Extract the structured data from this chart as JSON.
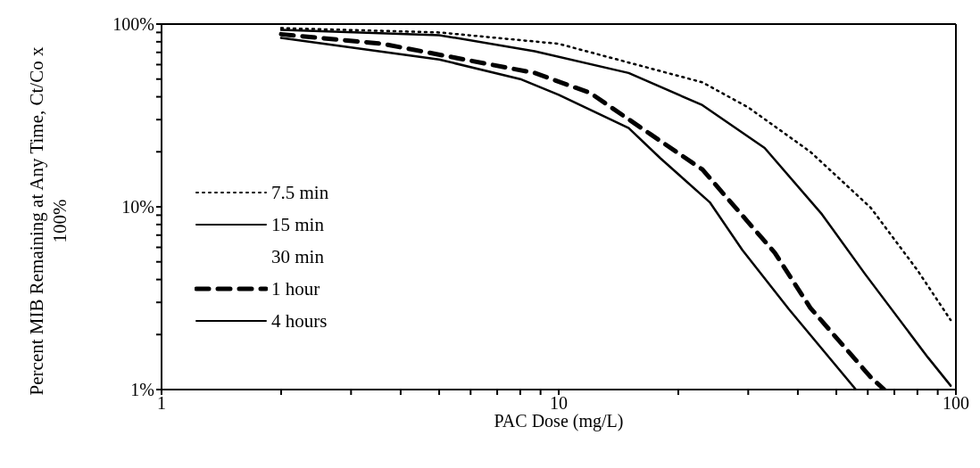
{
  "chart_data": {
    "type": "line",
    "xlabel": "PAC Dose (mg/L)",
    "ylabel": "Percent MIB Remaining at Any Time, Ct/Co x 100%",
    "log": "xy",
    "legend": "left",
    "marker": "none",
    "annotations": [
      "30 min"
    ],
    "xlim": [
      1,
      100
    ],
    "ylim": [
      1,
      100
    ],
    "xticks": [
      1,
      {
        "value": 2,
        "label": null
      },
      {
        "value": 3,
        "label": null
      },
      {
        "value": 4,
        "label": null
      },
      {
        "value": 5,
        "label": null
      },
      {
        "value": 6,
        "label": null
      },
      {
        "value": 7,
        "label": null
      },
      {
        "value": 8,
        "label": null
      },
      {
        "value": 9,
        "label": null
      },
      10,
      {
        "value": 20,
        "label": null
      },
      {
        "value": 30,
        "label": null
      },
      {
        "value": 40,
        "label": null
      },
      {
        "value": 50,
        "label": null
      },
      {
        "value": 60,
        "label": null
      },
      {
        "value": 70,
        "label": null
      },
      {
        "value": 80,
        "label": null
      },
      {
        "value": 90,
        "label": null
      },
      100
    ],
    "yticks": [
      {
        "value": 1,
        "label": "1%"
      },
      {
        "value": 2,
        "label": null
      },
      {
        "value": 3,
        "label": null
      },
      {
        "value": 4,
        "label": null
      },
      {
        "value": 5,
        "label": null
      },
      {
        "value": 6,
        "label": null
      },
      {
        "value": 7,
        "label": null
      },
      {
        "value": 8,
        "label": null
      },
      {
        "value": 9,
        "label": null
      },
      {
        "value": 10,
        "label": "10%"
      },
      {
        "value": 20,
        "label": null
      },
      {
        "value": 30,
        "label": null
      },
      {
        "value": 40,
        "label": null
      },
      {
        "value": 50,
        "label": null
      },
      {
        "value": 60,
        "label": null
      },
      {
        "value": 70,
        "label": null
      },
      {
        "value": 80,
        "label": null
      },
      {
        "value": 90,
        "label": null
      },
      {
        "value": 100,
        "label": "100%"
      }
    ],
    "series": [
      {
        "name": "7.5 min",
        "color": "#000000",
        "line_style": "dotted",
        "x": [
          2,
          5,
          10,
          23,
          30,
          43,
          61,
          80,
          97
        ],
        "values": [
          95,
          90,
          78,
          48,
          35,
          20,
          9.9,
          4.5,
          2.4
        ]
      },
      {
        "name": "15 min",
        "color": "#000000",
        "line_style": "solid",
        "x": [
          2,
          5,
          8.7,
          15,
          23,
          33,
          46,
          59,
          85,
          97
        ],
        "values": [
          93,
          87,
          71,
          54,
          36,
          21,
          9.1,
          4.3,
          1.5,
          1.05
        ]
      },
      {
        "name": "1 hour",
        "color": "#000000",
        "line_style": "dashed",
        "x": [
          2,
          3.6,
          8.7,
          12,
          17,
          23,
          35,
          43,
          61,
          66
        ],
        "values": [
          88,
          78,
          54,
          42,
          25,
          16,
          5.6,
          2.8,
          1.17,
          1
        ]
      },
      {
        "name": "4 hours",
        "color": "#000000",
        "line_style": "solid",
        "x": [
          2,
          5,
          8,
          10,
          15,
          18,
          24,
          29,
          38,
          56
        ],
        "values": [
          84,
          64,
          50,
          41,
          27,
          18.5,
          10.6,
          5.8,
          2.75,
          1
        ]
      }
    ]
  }
}
